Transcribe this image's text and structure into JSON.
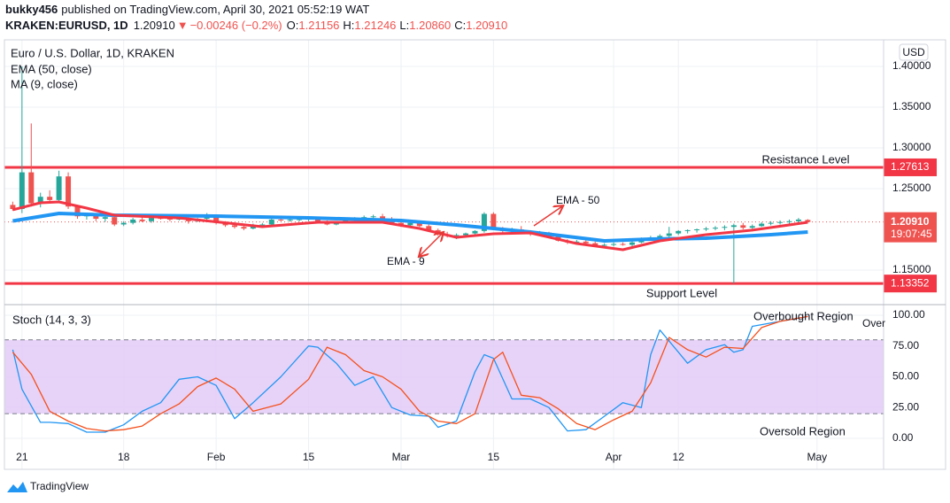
{
  "header": {
    "author": "bukky456",
    "published": "published on TradingView.com, April 30, 2021 05:52:19 WAT",
    "symbol": "KRAKEN:EURUSD, 1D",
    "last": "1.20910",
    "arrow": "▼",
    "change": "−0.00246 (−0.2%)",
    "ohlc": [
      {
        "key": "O:",
        "value": "1.21156"
      },
      {
        "key": "H:",
        "value": "1.21246"
      },
      {
        "key": "L:",
        "value": "1.20860"
      },
      {
        "key": "C:",
        "value": "1.20910"
      }
    ]
  },
  "footer": {
    "brand": "TradingView"
  },
  "chart_data": [
    {
      "type": "candlestick",
      "title": "Euro / U.S. Dollar, 1D, KRAKEN",
      "currency": "USD",
      "up_color": "#26a69a",
      "down_color": "#ef5350",
      "ylim": [
        1.1087,
        1.4326
      ],
      "yticks": [
        {
          "value": 1.15,
          "label": "1.15000"
        },
        {
          "value": 1.25,
          "label": "1.25000"
        },
        {
          "value": 1.3,
          "label": "1.30000"
        },
        {
          "value": 1.35,
          "label": "1.35000"
        },
        {
          "value": 1.4,
          "label": "1.40000"
        }
      ],
      "open": [
        1.23,
        1.225,
        1.27,
        1.232,
        1.24,
        1.236,
        1.265,
        1.228,
        1.216,
        1.218,
        1.213,
        1.215,
        1.206,
        1.208,
        1.212,
        1.21,
        1.214,
        1.213,
        1.212,
        1.214,
        1.21,
        1.213,
        1.215,
        1.208,
        1.205,
        1.203,
        1.201,
        1.205,
        1.206,
        1.212,
        1.211,
        1.212,
        1.2125,
        1.213,
        1.209,
        1.206,
        1.209,
        1.212,
        1.214,
        1.215,
        1.216,
        1.212,
        1.208,
        1.205,
        1.208,
        1.204,
        1.199,
        1.194,
        1.192,
        1.193,
        1.195,
        1.198,
        1.219,
        1.201,
        1.198,
        1.2,
        1.197,
        1.194,
        1.196,
        1.191,
        1.186,
        1.184,
        1.185,
        1.183,
        1.18,
        1.181,
        1.182,
        1.181,
        1.184,
        1.189,
        1.19,
        1.192,
        1.195,
        1.198,
        1.199,
        1.2,
        1.201,
        1.202,
        1.203,
        1.205,
        1.202,
        1.204,
        1.207,
        1.208,
        1.209,
        1.21,
        1.21156
      ],
      "high": [
        1.234,
        1.4,
        1.33,
        1.245,
        1.248,
        1.272,
        1.27,
        1.23,
        1.22,
        1.22,
        1.217,
        1.216,
        1.21,
        1.214,
        1.216,
        1.215,
        1.218,
        1.216,
        1.217,
        1.215,
        1.214,
        1.22,
        1.216,
        1.21,
        1.208,
        1.206,
        1.207,
        1.208,
        1.213,
        1.214,
        1.213,
        1.214,
        1.215,
        1.215,
        1.211,
        1.21,
        1.213,
        1.215,
        1.217,
        1.218,
        1.219,
        1.215,
        1.211,
        1.21,
        1.209,
        1.206,
        1.201,
        1.197,
        1.195,
        1.196,
        1.199,
        1.221,
        1.221,
        1.203,
        1.202,
        1.204,
        1.199,
        1.198,
        1.197,
        1.193,
        1.188,
        1.187,
        1.187,
        1.185,
        1.183,
        1.184,
        1.184,
        1.186,
        1.19,
        1.192,
        1.194,
        1.203,
        1.199,
        1.2,
        1.201,
        1.203,
        1.204,
        1.205,
        1.207,
        1.208,
        1.206,
        1.209,
        1.21,
        1.211,
        1.212,
        1.214,
        1.21246
      ],
      "low": [
        1.223,
        1.22,
        1.228,
        1.227,
        1.233,
        1.234,
        1.225,
        1.213,
        1.212,
        1.21,
        1.209,
        1.204,
        1.204,
        1.206,
        1.209,
        1.208,
        1.212,
        1.21,
        1.211,
        1.207,
        1.209,
        1.211,
        1.206,
        1.203,
        1.201,
        1.199,
        1.2,
        1.203,
        1.205,
        1.21,
        1.209,
        1.21,
        1.21,
        1.207,
        1.205,
        1.205,
        1.208,
        1.21,
        1.212,
        1.213,
        1.21,
        1.206,
        1.203,
        1.203,
        1.203,
        1.197,
        1.192,
        1.19,
        1.188,
        1.191,
        1.193,
        1.196,
        1.199,
        1.196,
        1.195,
        1.196,
        1.192,
        1.192,
        1.19,
        1.185,
        1.182,
        1.181,
        1.182,
        1.179,
        1.177,
        1.179,
        1.18,
        1.179,
        1.183,
        1.186,
        1.188,
        1.19,
        1.193,
        1.195,
        1.196,
        1.198,
        1.199,
        1.199,
        1.1335,
        1.2,
        1.2,
        1.203,
        1.205,
        1.206,
        1.207,
        1.208,
        1.2086
      ],
      "close": [
        1.225,
        1.27,
        1.232,
        1.24,
        1.236,
        1.265,
        1.228,
        1.216,
        1.218,
        1.213,
        1.215,
        1.206,
        1.208,
        1.212,
        1.21,
        1.214,
        1.213,
        1.212,
        1.214,
        1.21,
        1.213,
        1.215,
        1.208,
        1.205,
        1.203,
        1.201,
        1.205,
        1.206,
        1.212,
        1.211,
        1.212,
        1.2125,
        1.213,
        1.209,
        1.206,
        1.209,
        1.212,
        1.214,
        1.215,
        1.216,
        1.212,
        1.208,
        1.205,
        1.208,
        1.204,
        1.199,
        1.194,
        1.192,
        1.193,
        1.195,
        1.198,
        1.219,
        1.201,
        1.198,
        1.2,
        1.197,
        1.194,
        1.196,
        1.191,
        1.186,
        1.184,
        1.185,
        1.183,
        1.18,
        1.181,
        1.182,
        1.181,
        1.184,
        1.189,
        1.19,
        1.192,
        1.195,
        1.198,
        1.199,
        1.2,
        1.201,
        1.202,
        1.203,
        1.205,
        1.202,
        1.204,
        1.207,
        1.208,
        1.209,
        1.21,
        1.212,
        1.2091
      ],
      "series": [
        {
          "name": "EMA (50, close)",
          "color": "#2196f3",
          "x": [
            0,
            5,
            11,
            22,
            32,
            42,
            48,
            56,
            64,
            69,
            75,
            82,
            86
          ],
          "values": [
            1.2103,
            1.2196,
            1.2174,
            1.2163,
            1.2141,
            1.2109,
            1.2054,
            1.1967,
            1.1859,
            1.188,
            1.1891,
            1.1935,
            1.1967
          ]
        },
        {
          "name": "MA (9, close)",
          "color": "#f23645",
          "x": [
            0,
            3,
            5,
            8,
            11,
            18,
            27,
            33,
            40,
            44,
            48,
            52,
            56,
            61,
            66,
            70,
            75,
            80,
            86
          ],
          "values": [
            1.224,
            1.2326,
            1.2337,
            1.2261,
            1.2174,
            1.214,
            1.2033,
            1.2087,
            1.2087,
            1.2011,
            1.1902,
            1.1946,
            1.1957,
            1.1826,
            1.175,
            1.1859,
            1.1935,
            1.199,
            1.2087
          ]
        }
      ],
      "levels": [
        {
          "label": "Resistance Level",
          "value": 1.27613,
          "color": "#f23645"
        },
        {
          "label": "Support Level",
          "value": 1.13352,
          "color": "#f23645"
        }
      ],
      "last_price": {
        "value": 1.2091,
        "label": "1.20910"
      },
      "countdown": "19:07:45",
      "annotations": [
        "EMA - 50",
        "EMA - 9"
      ]
    },
    {
      "type": "line",
      "title": "Stoch (14, 3, 3)",
      "ylim": [
        -25.2,
        107.9
      ],
      "yticks": [
        {
          "value": 0,
          "label": "0.00"
        },
        {
          "value": 25,
          "label": "25.00"
        },
        {
          "value": 50,
          "label": "50.00"
        },
        {
          "value": 75,
          "label": "75.00"
        },
        {
          "value": 100,
          "label": "100.00"
        }
      ],
      "band": [
        20,
        80
      ],
      "band_color": "#e3cbf7",
      "xlim": [
        -0.9,
        94.2
      ],
      "xticks": [
        {
          "value": 1,
          "label": "21"
        },
        {
          "value": 12,
          "label": "18"
        },
        {
          "value": 22,
          "label": "Feb"
        },
        {
          "value": 32,
          "label": "15"
        },
        {
          "value": 42,
          "label": "Mar"
        },
        {
          "value": 52,
          "label": "15"
        },
        {
          "value": 65,
          "label": "Apr"
        },
        {
          "value": 72,
          "label": "12"
        },
        {
          "value": 87,
          "label": "May"
        }
      ],
      "series": [
        {
          "color": "#2196f3",
          "x": [
            0,
            1,
            3,
            4,
            6,
            8,
            10,
            12,
            14,
            16,
            18,
            20,
            22,
            24,
            26,
            29,
            32,
            33,
            35,
            37,
            39,
            41,
            43,
            45,
            46,
            48,
            50,
            51,
            52,
            54,
            56,
            58,
            60,
            62,
            64,
            66,
            68,
            69,
            70,
            71,
            73,
            75,
            77,
            78,
            79,
            80,
            83,
            86
          ],
          "values": [
            72,
            40,
            13,
            13,
            12,
            5,
            5,
            11,
            22,
            29,
            48,
            50,
            43,
            16,
            29,
            50,
            75,
            74,
            61,
            43,
            50,
            25,
            19,
            18,
            9,
            14,
            54,
            68,
            65,
            32,
            32,
            25,
            6,
            7,
            18,
            29,
            25,
            68,
            88,
            79,
            61,
            72,
            76,
            70,
            72,
            91,
            95,
            99
          ]
        },
        {
          "color": "#f4511e",
          "x": [
            0,
            2,
            4,
            6,
            8,
            10,
            12,
            14,
            16,
            18,
            20,
            22,
            24,
            26,
            29,
            32,
            34,
            36,
            38,
            40,
            42,
            44,
            46,
            48,
            50,
            52,
            53,
            55,
            57,
            59,
            61,
            63,
            65,
            67,
            69,
            71,
            73,
            75,
            77,
            79,
            81,
            83,
            86
          ],
          "values": [
            70,
            52,
            22,
            14,
            8,
            6,
            7,
            10,
            20,
            28,
            42,
            49,
            40,
            22,
            28,
            48,
            74,
            68,
            55,
            50,
            40,
            22,
            14,
            12,
            20,
            64,
            70,
            35,
            33,
            24,
            12,
            7,
            15,
            22,
            45,
            82,
            72,
            66,
            74,
            73,
            90,
            95,
            99
          ]
        }
      ],
      "annotations": [
        "Overbought Region",
        "Oversold Region",
        "Over"
      ]
    }
  ]
}
